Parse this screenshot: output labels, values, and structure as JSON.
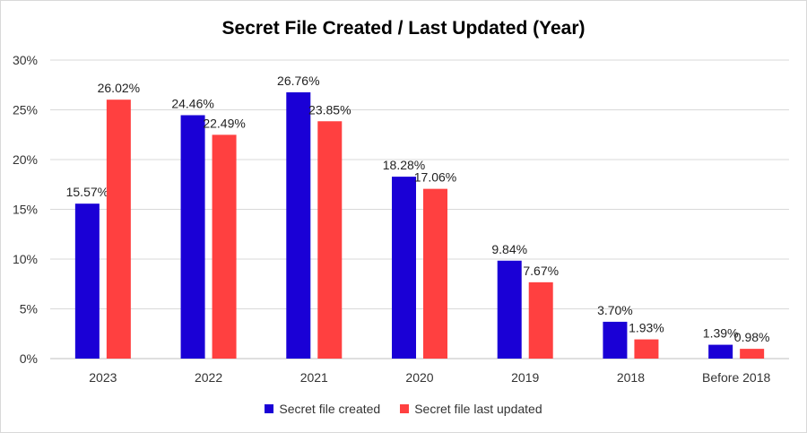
{
  "chart_data": {
    "type": "bar",
    "title": "Secret File Created / Last Updated (Year)",
    "xlabel": "",
    "ylabel": "",
    "categories": [
      "2023",
      "2022",
      "2021",
      "2020",
      "2019",
      "2018",
      "Before 2018"
    ],
    "series": [
      {
        "name": "Secret file created",
        "color": "#1a00d6",
        "values": [
          15.57,
          24.46,
          26.76,
          18.28,
          9.84,
          3.7,
          1.39
        ],
        "labels": [
          "15.57%",
          "24.46%",
          "26.76%",
          "18.28%",
          "9.84%",
          "3.70%",
          "1.39%"
        ]
      },
      {
        "name": "Secret file last updated",
        "color": "#ff4040",
        "values": [
          26.02,
          22.49,
          23.85,
          17.06,
          7.67,
          1.93,
          0.98
        ],
        "labels": [
          "26.02%",
          "22.49%",
          "23.85%",
          "17.06%",
          "7.67%",
          "1.93%",
          "0.98%"
        ]
      }
    ],
    "ylim": [
      0,
      30
    ],
    "yticks": [
      "0%",
      "5%",
      "10%",
      "15%",
      "20%",
      "25%",
      "30%"
    ],
    "grid": true,
    "legend": "bottom"
  }
}
